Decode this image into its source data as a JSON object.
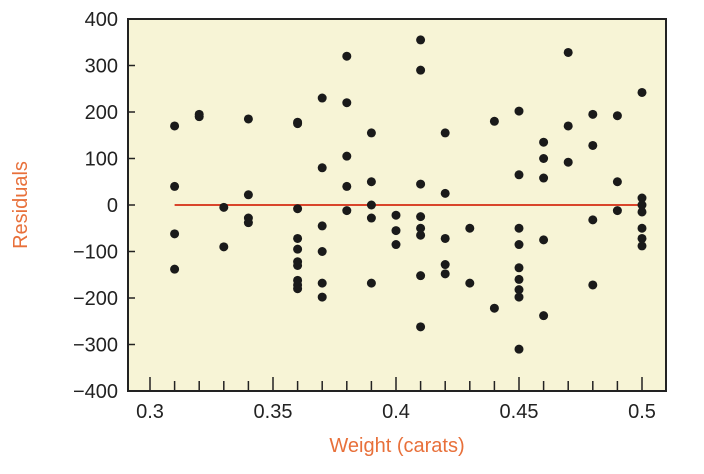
{
  "chart_data": {
    "type": "scatter",
    "title": "",
    "xlabel": "Weight (carats)",
    "ylabel": "Residuals",
    "xlim": [
      0.3,
      0.5
    ],
    "ylim": [
      -400,
      400
    ],
    "x_ticks": [
      "0.3",
      "0.35",
      "0.4",
      "0.45",
      "0.5"
    ],
    "x_minor_tick_step": 0.01,
    "y_ticks": [
      "400",
      "300",
      "200",
      "100",
      "0",
      "−100",
      "−200",
      "−300",
      "−400"
    ],
    "reference_line": {
      "y": 0,
      "x_range": [
        0.31,
        0.5
      ]
    },
    "grid": false,
    "colors": {
      "plot_background": "#f7f4d6",
      "points": "#1a1a1a",
      "reference_line": "#d9452b",
      "axis_titles": "#e8703a",
      "frame": "#222222"
    },
    "series": [
      {
        "points": [
          [
            0.31,
            170
          ],
          [
            0.31,
            40
          ],
          [
            0.31,
            -62
          ],
          [
            0.31,
            -138
          ],
          [
            0.32,
            190
          ],
          [
            0.32,
            195
          ],
          [
            0.33,
            -5
          ],
          [
            0.33,
            -90
          ],
          [
            0.34,
            185
          ],
          [
            0.34,
            22
          ],
          [
            0.34,
            -28
          ],
          [
            0.34,
            -38
          ],
          [
            0.36,
            178
          ],
          [
            0.36,
            175
          ],
          [
            0.36,
            -8
          ],
          [
            0.36,
            -72
          ],
          [
            0.36,
            -95
          ],
          [
            0.36,
            -122
          ],
          [
            0.36,
            -130
          ],
          [
            0.36,
            -162
          ],
          [
            0.36,
            -172
          ],
          [
            0.36,
            -180
          ],
          [
            0.37,
            230
          ],
          [
            0.37,
            80
          ],
          [
            0.37,
            -45
          ],
          [
            0.37,
            -100
          ],
          [
            0.37,
            -168
          ],
          [
            0.37,
            -198
          ],
          [
            0.38,
            320
          ],
          [
            0.38,
            220
          ],
          [
            0.38,
            105
          ],
          [
            0.38,
            40
          ],
          [
            0.38,
            -12
          ],
          [
            0.39,
            155
          ],
          [
            0.39,
            50
          ],
          [
            0.39,
            0
          ],
          [
            0.39,
            -28
          ],
          [
            0.39,
            -168
          ],
          [
            0.4,
            -22
          ],
          [
            0.4,
            -55
          ],
          [
            0.4,
            -85
          ],
          [
            0.41,
            355
          ],
          [
            0.41,
            290
          ],
          [
            0.41,
            45
          ],
          [
            0.41,
            -25
          ],
          [
            0.41,
            -50
          ],
          [
            0.41,
            -65
          ],
          [
            0.41,
            -152
          ],
          [
            0.41,
            -262
          ],
          [
            0.42,
            155
          ],
          [
            0.42,
            25
          ],
          [
            0.42,
            -72
          ],
          [
            0.42,
            -128
          ],
          [
            0.42,
            -148
          ],
          [
            0.43,
            -50
          ],
          [
            0.43,
            -168
          ],
          [
            0.44,
            180
          ],
          [
            0.44,
            -222
          ],
          [
            0.45,
            202
          ],
          [
            0.45,
            65
          ],
          [
            0.45,
            -50
          ],
          [
            0.45,
            -85
          ],
          [
            0.45,
            -135
          ],
          [
            0.45,
            -160
          ],
          [
            0.45,
            -182
          ],
          [
            0.45,
            -198
          ],
          [
            0.45,
            -310
          ],
          [
            0.46,
            135
          ],
          [
            0.46,
            100
          ],
          [
            0.46,
            58
          ],
          [
            0.46,
            -75
          ],
          [
            0.46,
            -238
          ],
          [
            0.47,
            328
          ],
          [
            0.47,
            170
          ],
          [
            0.47,
            92
          ],
          [
            0.48,
            195
          ],
          [
            0.48,
            128
          ],
          [
            0.48,
            -32
          ],
          [
            0.48,
            -172
          ],
          [
            0.49,
            192
          ],
          [
            0.49,
            50
          ],
          [
            0.49,
            -12
          ],
          [
            0.5,
            242
          ],
          [
            0.5,
            15
          ],
          [
            0.5,
            0
          ],
          [
            0.5,
            -15
          ],
          [
            0.5,
            -50
          ],
          [
            0.5,
            -72
          ],
          [
            0.5,
            -88
          ]
        ]
      }
    ]
  }
}
